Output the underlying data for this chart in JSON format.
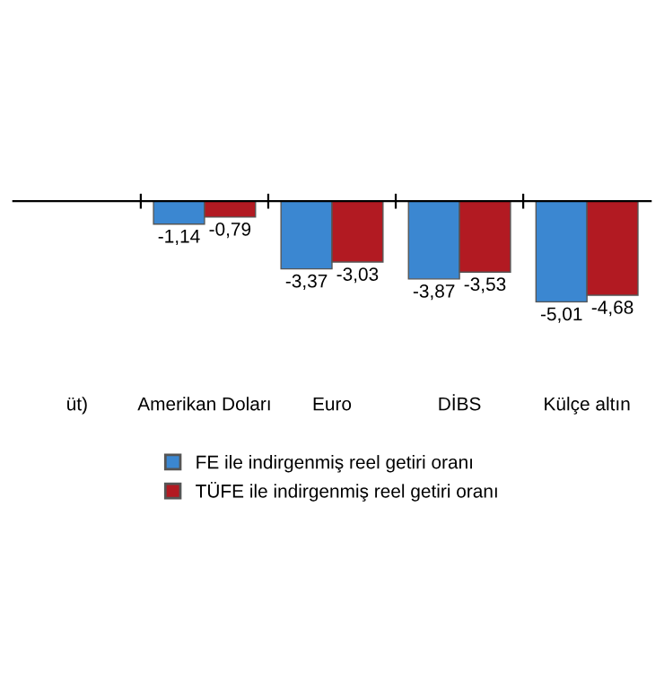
{
  "chart_data": {
    "type": "bar",
    "categories": [
      "üt)",
      "Amerikan Doları",
      "Euro",
      "DİBS",
      "Külçe altın"
    ],
    "series": [
      {
        "name": "FE ile indirgenmiş reel getiri oranı",
        "color": "#3b87d1",
        "values": [
          null,
          -1.14,
          -3.37,
          -3.87,
          -5.01
        ],
        "value_labels": [
          null,
          "-1,14",
          "-3,37",
          "-3,87",
          "-5,01"
        ]
      },
      {
        "name": "TÜFE ile indirgenmiş reel getiri oranı",
        "color": "#b21a22",
        "values": [
          null,
          -0.79,
          -3.03,
          -3.53,
          -4.68
        ],
        "value_labels": [
          null,
          "-0,79",
          "-3,03",
          "-3,53",
          "-4,68"
        ]
      }
    ],
    "legend": "bottom",
    "grid": false
  }
}
